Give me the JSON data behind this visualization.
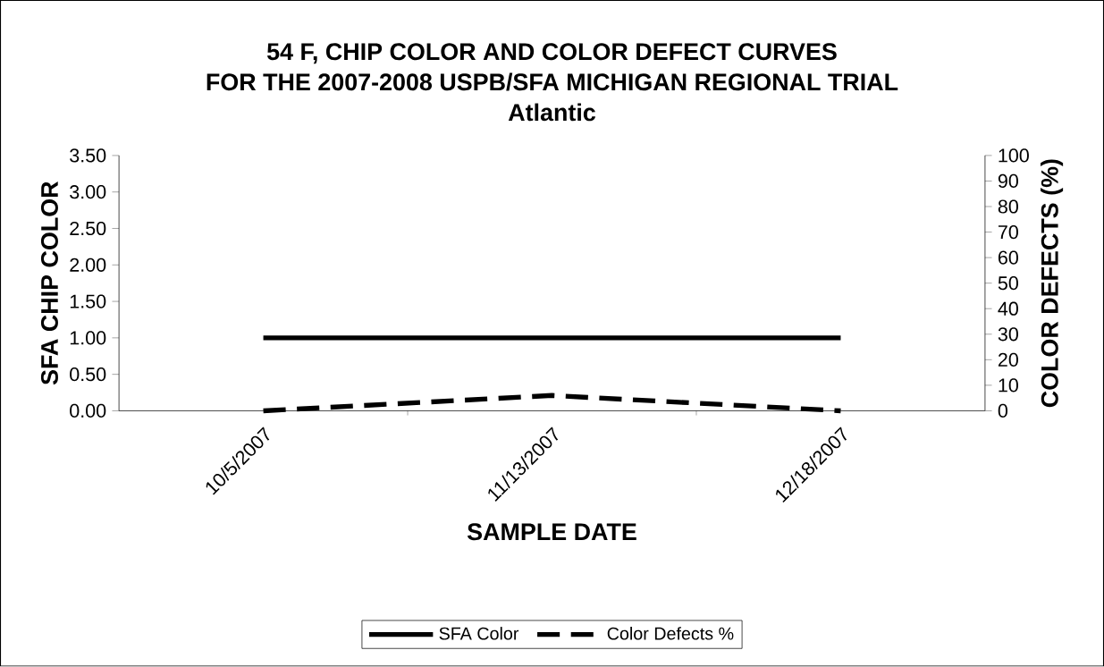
{
  "chart_data": {
    "type": "line",
    "title": "54 F, CHIP COLOR AND COLOR DEFECT CURVES",
    "subtitle": "FOR THE 2007-2008 USPB/SFA MICHIGAN REGIONAL TRIAL",
    "annotations": [
      "Atlantic"
    ],
    "xlabel": "SAMPLE DATE",
    "ylabel": "SFA CHIP COLOR",
    "y2label": "COLOR DEFECTS (%)",
    "categories": [
      "10/5/2007",
      "11/13/2007",
      "12/18/2007"
    ],
    "series": [
      {
        "name": "SFA Color",
        "color": "#000000",
        "values": [
          1.0,
          1.0,
          1.0
        ],
        "line_style": "solid"
      },
      {
        "name": "Color Defects %",
        "color": "#000000",
        "values": [
          0,
          6,
          0
        ],
        "axis": "y2",
        "line_style": "dashed"
      }
    ],
    "ylim": [
      0,
      3.5
    ],
    "yticks": [
      {
        "value": 0,
        "label": "0.00"
      },
      {
        "value": 0.5,
        "label": "0.50"
      },
      {
        "value": 1,
        "label": "1.00"
      },
      {
        "value": 1.5,
        "label": "1.50"
      },
      {
        "value": 2,
        "label": "2.00"
      },
      {
        "value": 2.5,
        "label": "2.50"
      },
      {
        "value": 3,
        "label": "3.00"
      },
      {
        "value": 3.5,
        "label": "3.50"
      }
    ],
    "y2lim": [
      0,
      100
    ],
    "y2ticks": [
      0,
      10,
      20,
      30,
      40,
      50,
      60,
      70,
      80,
      90,
      100
    ],
    "grid": false,
    "legend": "bottom",
    "marker": "none"
  }
}
